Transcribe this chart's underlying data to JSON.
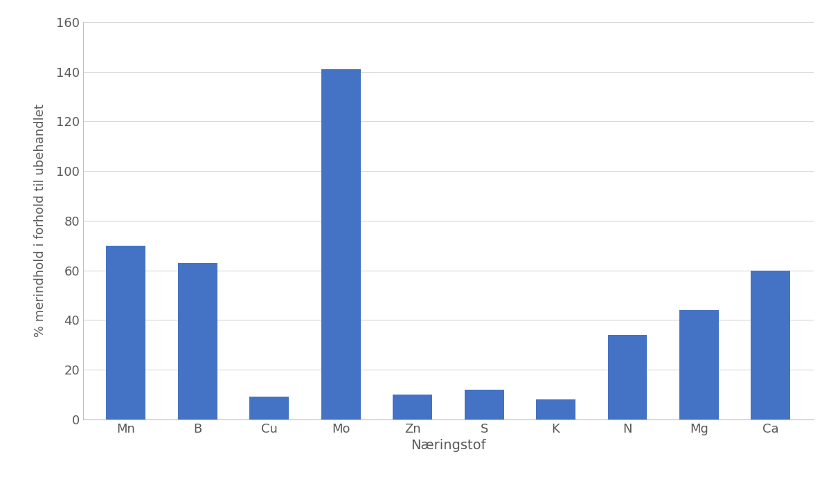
{
  "categories": [
    "Mn",
    "B",
    "Cu",
    "Mo",
    "Zn",
    "S",
    "K",
    "N",
    "Mg",
    "Ca"
  ],
  "values": [
    70,
    63,
    9,
    141,
    10,
    12,
    8,
    34,
    44,
    60
  ],
  "bar_color": "#4472C4",
  "xlabel": "Næringstof",
  "ylabel": "% merindhold i forhold til ubehandlet",
  "xlabel_fontsize": 14,
  "ylabel_fontsize": 13,
  "tick_fontsize": 13,
  "ylim": [
    0,
    160
  ],
  "yticks": [
    0,
    20,
    40,
    60,
    80,
    100,
    120,
    140,
    160
  ],
  "grid_color": "#D9D9D9",
  "background_color": "#FFFFFF",
  "outer_background": "#F2F2F2",
  "bar_width": 0.55,
  "border_color": "#BFBFBF",
  "label_color": "#595959"
}
